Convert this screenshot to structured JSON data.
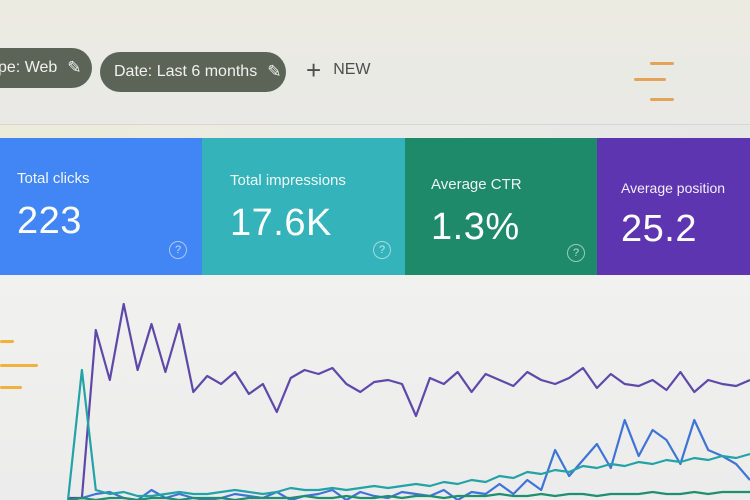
{
  "filters": {
    "type_chip": {
      "label": "pe: Web",
      "icon": "pencil-icon"
    },
    "date_chip": {
      "label": "Date: Last 6 months",
      "icon": "pencil-icon"
    },
    "new_button": {
      "label": "NEW",
      "icon": "plus-icon"
    }
  },
  "metrics": [
    {
      "label": "Total clicks",
      "value": "223",
      "color": "#4285f4",
      "help": "?"
    },
    {
      "label": "Total impressions",
      "value": "17.6K",
      "color": "#34b3ba",
      "help": "?"
    },
    {
      "label": "Average CTR",
      "value": "1.3%",
      "color": "#1f8a6a",
      "help": "?"
    },
    {
      "label": "Average position",
      "value": "25.2",
      "color": "#5e35b1"
    }
  ],
  "chart_data": {
    "type": "line",
    "title": "",
    "xlabel": "",
    "ylabel": "",
    "grid": false,
    "legend": "none",
    "series": [
      {
        "key": "position",
        "color": "#5d4aa8",
        "values": [
          1,
          1,
          85,
          60,
          98,
          65,
          88,
          64,
          88,
          54,
          62,
          58,
          64,
          53,
          58,
          44,
          61,
          65,
          63,
          66,
          58,
          54,
          59,
          60,
          58,
          42,
          61,
          58,
          64,
          54,
          63,
          60,
          57,
          64,
          60,
          58,
          61,
          66,
          56,
          63,
          58,
          57,
          60,
          55,
          64,
          54,
          60,
          58,
          57,
          60
        ]
      },
      {
        "key": "clicks",
        "color": "#3f74d6",
        "values": [
          0,
          1,
          3,
          4,
          1,
          0,
          5,
          1,
          3,
          1,
          0,
          1,
          3,
          2,
          1,
          4,
          0,
          2,
          3,
          5,
          0,
          4,
          2,
          1,
          4,
          3,
          2,
          5,
          0,
          4,
          3,
          8,
          3,
          10,
          5,
          25,
          12,
          20,
          28,
          16,
          40,
          22,
          35,
          30,
          18,
          40,
          25,
          22,
          18,
          10
        ]
      },
      {
        "key": "impressions",
        "color": "#22a3a6",
        "values": [
          0,
          65,
          5,
          3,
          4,
          2,
          2,
          3,
          4,
          3,
          3,
          4,
          5,
          4,
          3,
          4,
          6,
          5,
          5,
          6,
          5,
          6,
          7,
          6,
          7,
          8,
          7,
          9,
          8,
          10,
          9,
          12,
          11,
          14,
          13,
          15,
          14,
          17,
          16,
          18,
          17,
          19,
          18,
          20,
          19,
          21,
          20,
          22,
          21,
          23
        ]
      },
      {
        "key": "ctr",
        "color": "#1f8f6e",
        "values": [
          0,
          1,
          0,
          1,
          1,
          0,
          1,
          1,
          0,
          1,
          1,
          1,
          0,
          1,
          1,
          1,
          1,
          2,
          1,
          1,
          2,
          1,
          1,
          2,
          1,
          2,
          2,
          1,
          2,
          2,
          2,
          3,
          2,
          2,
          3,
          2,
          3,
          3,
          2,
          3,
          3,
          3,
          4,
          3,
          3,
          4,
          3,
          4,
          4,
          4
        ]
      }
    ]
  }
}
